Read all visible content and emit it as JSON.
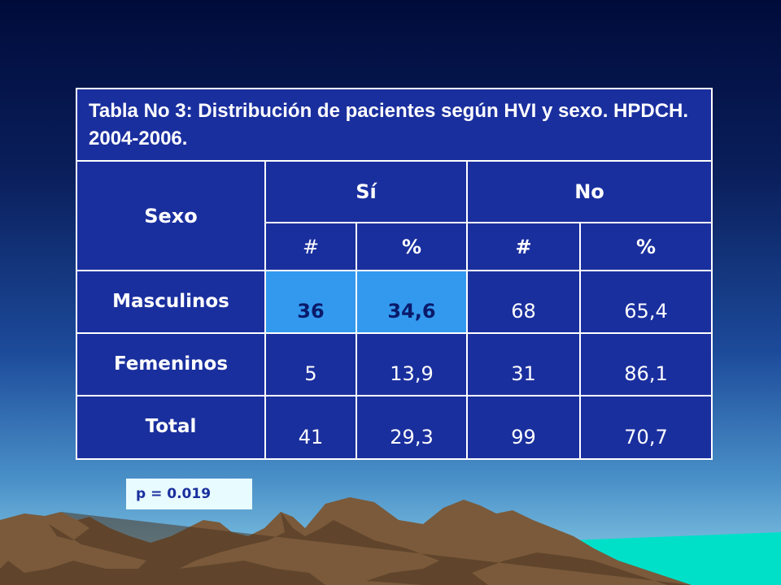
{
  "table": {
    "title": "Tabla No 3: Distribución de pacientes según HVI y sexo. HPDCH.  2004-2006.",
    "col_sexo": "Sexo",
    "col_si": "Sí",
    "col_no": "No",
    "sub_si_count": "#",
    "sub_si_pct": "%",
    "sub_no_count": "#",
    "sub_no_pct": "%",
    "rows": [
      {
        "label": "Masculinos",
        "si_n": "36",
        "si_pct": "34,6",
        "no_n": "68",
        "no_pct": "65,4"
      },
      {
        "label": "Femeninos",
        "si_n": "5",
        "si_pct": "13,9",
        "no_n": "31",
        "no_pct": "86,1"
      },
      {
        "label": "Total",
        "si_n": "41",
        "si_pct": "29,3",
        "no_n": "99",
        "no_pct": "70,7"
      }
    ]
  },
  "p_value": "p = 0.019",
  "colors": {
    "table_bg": "#1a2f9e",
    "highlight": "#3399ee",
    "mountains": "#7a5a3a"
  }
}
